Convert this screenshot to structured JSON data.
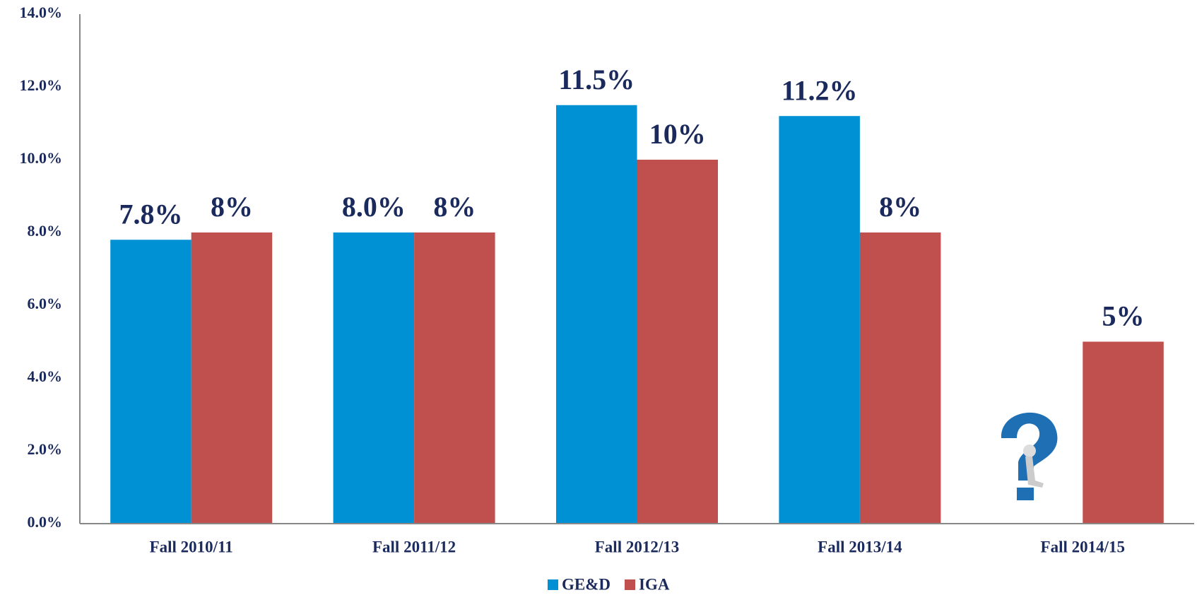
{
  "chart_data": {
    "type": "bar",
    "categories": [
      "Fall 2010/11",
      "Fall 2011/12",
      "Fall 2012/13",
      "Fall 2013/14",
      "Fall 2014/15"
    ],
    "series": [
      {
        "name": "GE&D",
        "color": "#0091d5",
        "values": [
          7.8,
          8.0,
          11.5,
          11.2,
          null
        ],
        "value_labels": [
          "7.8%",
          "8.0%",
          "11.5%",
          "11.2%",
          null
        ]
      },
      {
        "name": "IGA",
        "color": "#c0504d",
        "values": [
          8,
          8,
          10,
          8,
          5
        ],
        "value_labels": [
          "8%",
          "8%",
          "10%",
          "8%",
          "5%"
        ]
      }
    ],
    "ylim": [
      0,
      14
    ],
    "yticks": [
      {
        "value": 0,
        "label": "0.0%"
      },
      {
        "value": 2,
        "label": "2.0%"
      },
      {
        "value": 4,
        "label": "4.0%"
      },
      {
        "value": 6,
        "label": "6.0%"
      },
      {
        "value": 8,
        "label": "8.0%"
      },
      {
        "value": 10,
        "label": "10.0%"
      },
      {
        "value": 12,
        "label": "12.0%"
      },
      {
        "value": 14,
        "label": "14.0%"
      }
    ],
    "grid": false,
    "legend": "bottom"
  }
}
